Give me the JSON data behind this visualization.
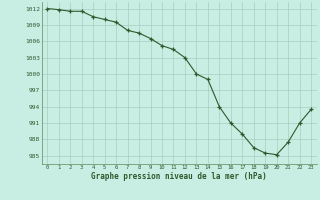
{
  "x": [
    0,
    1,
    2,
    3,
    4,
    5,
    6,
    7,
    8,
    9,
    10,
    11,
    12,
    13,
    14,
    15,
    16,
    17,
    18,
    19,
    20,
    21,
    22,
    23
  ],
  "y": [
    1012,
    1011.8,
    1011.5,
    1011.5,
    1010.5,
    1010,
    1009.5,
    1008,
    1007.5,
    1006.5,
    1005.2,
    1004.5,
    1003,
    1000,
    999,
    994,
    991,
    989,
    986.5,
    985.5,
    985.2,
    987.5,
    991,
    993.5
  ],
  "ylim": [
    983.5,
    1013.2
  ],
  "yticks": [
    985,
    988,
    991,
    994,
    997,
    1000,
    1003,
    1006,
    1009,
    1012
  ],
  "xlim": [
    -0.5,
    23.5
  ],
  "xlabel": "Graphe pression niveau de la mer (hPa)",
  "bg_color": "#c8eee4",
  "line_color": "#2d5a2d",
  "marker_color": "#2d5a2d",
  "grid_color": "#a8ccc0",
  "text_color": "#2d5a2d",
  "spine_color": "#5a8a5a"
}
